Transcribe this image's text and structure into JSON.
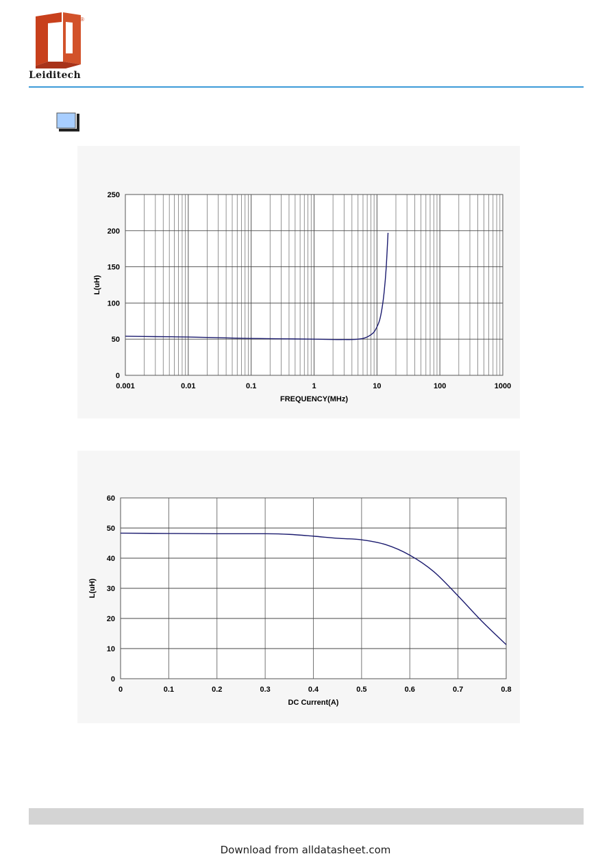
{
  "header": {
    "brand": "Leiditech",
    "registered_mark": "®",
    "logo_icon": "leiditech-logo-icon",
    "accent_color": "#3c9ad8",
    "logo_color": "#c8401c"
  },
  "footer": {
    "text": "Download from alldatasheet.com"
  },
  "chart_data": [
    {
      "type": "line",
      "title": "",
      "xlabel": "FREQUENCY(MHz)",
      "ylabel": "L(uH)",
      "xscale": "log",
      "xlim": [
        0.001,
        1000
      ],
      "ylim": [
        0,
        250
      ],
      "xticks": [
        0.001,
        0.01,
        0.1,
        1,
        10,
        100,
        1000
      ],
      "xtick_labels": [
        "0.001",
        "0.01",
        "0.1",
        "1",
        "10",
        "100",
        "1000"
      ],
      "yticks": [
        0,
        50,
        100,
        150,
        200,
        250
      ],
      "ytick_labels": [
        "0",
        "50",
        "100",
        "150",
        "200",
        "250"
      ],
      "grid": true,
      "line_color": "#1a1a6e",
      "series": [
        {
          "x": [
            0.001,
            0.003,
            0.01,
            0.03,
            0.1,
            0.3,
            1,
            2,
            3,
            4,
            5,
            6,
            7,
            8,
            9,
            10,
            11,
            12,
            13,
            14,
            15
          ],
          "y": [
            54,
            53.5,
            53,
            52,
            51,
            50.5,
            50,
            49.5,
            49.5,
            49.5,
            50,
            51,
            53,
            56,
            60,
            67,
            76,
            92,
            115,
            148,
            197
          ]
        }
      ]
    },
    {
      "type": "line",
      "title": "",
      "xlabel": "DC Current(A)",
      "ylabel": "L(uH)",
      "xlim": [
        0,
        0.8
      ],
      "ylim": [
        0,
        60
      ],
      "xticks": [
        0,
        0.1,
        0.2,
        0.3,
        0.4,
        0.5,
        0.6,
        0.7,
        0.8
      ],
      "xtick_labels": [
        "0",
        "0.1",
        "0.2",
        "0.3",
        "0.4",
        "0.5",
        "0.6",
        "0.7",
        "0.8"
      ],
      "yticks": [
        0,
        10,
        20,
        30,
        40,
        50,
        60
      ],
      "ytick_labels": [
        "0",
        "10",
        "20",
        "30",
        "40",
        "50",
        "60"
      ],
      "grid": true,
      "line_color": "#1a1a6e",
      "series": [
        {
          "x": [
            0,
            0.1,
            0.2,
            0.3,
            0.35,
            0.4,
            0.45,
            0.5,
            0.55,
            0.6,
            0.65,
            0.7,
            0.75,
            0.8
          ],
          "y": [
            48.3,
            48.2,
            48.1,
            48.1,
            47.9,
            47.3,
            46.6,
            46.1,
            44.5,
            41.0,
            35.5,
            27.5,
            19.0,
            11.3
          ]
        }
      ]
    }
  ]
}
